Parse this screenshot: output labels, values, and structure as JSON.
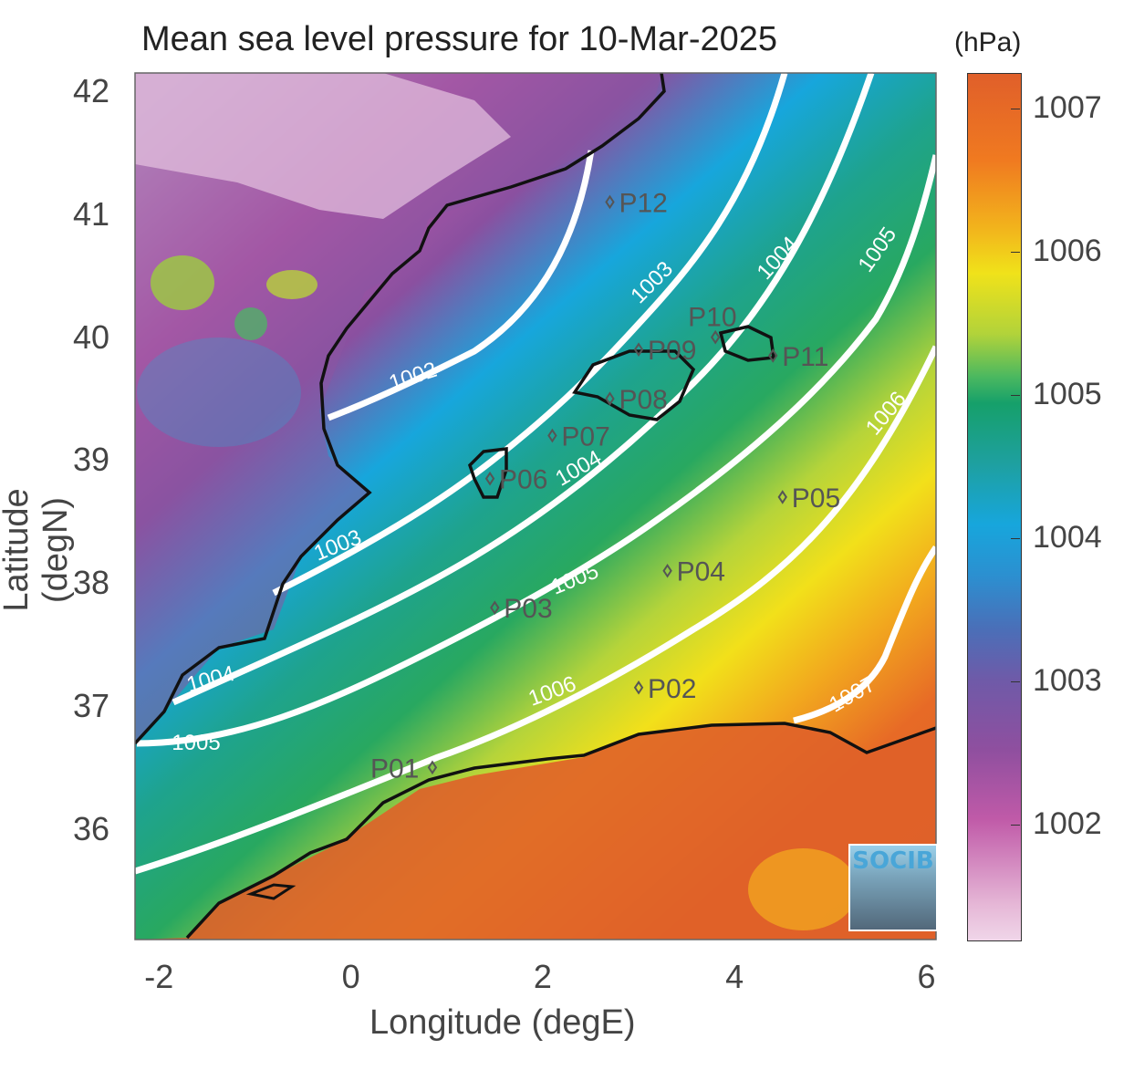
{
  "title": "Mean sea level pressure for 10-Mar-2025",
  "colorbar": {
    "unit_label": "(hPa)",
    "ticks": [
      "1007",
      "1006",
      "1005",
      "1004",
      "1003",
      "1002"
    ],
    "range": [
      1001.2,
      1007.25
    ]
  },
  "axes": {
    "xlabel": "Longitude (degE)",
    "ylabel": "Latitude (degN)",
    "xticks": [
      "-2",
      "0",
      "2",
      "4",
      "6"
    ],
    "yticks": [
      "42",
      "41",
      "40",
      "39",
      "38",
      "37",
      "36"
    ],
    "xlim": [
      -2.25,
      6.1
    ],
    "ylim": [
      35.1,
      42.15
    ]
  },
  "contours": [
    {
      "value": 1002,
      "label": "1002"
    },
    {
      "value": 1003,
      "label": "1003"
    },
    {
      "value": 1004,
      "label": "1004"
    },
    {
      "value": 1005,
      "label": "1005"
    },
    {
      "value": 1006,
      "label": "1006"
    },
    {
      "value": 1007,
      "label": "1007"
    }
  ],
  "points": [
    {
      "label": "P01",
      "lon": 0.85,
      "lat": 36.5
    },
    {
      "label": "P02",
      "lon": 3.0,
      "lat": 37.15
    },
    {
      "label": "P03",
      "lon": 1.5,
      "lat": 37.8
    },
    {
      "label": "P04",
      "lon": 3.3,
      "lat": 38.1
    },
    {
      "label": "P05",
      "lon": 4.5,
      "lat": 38.7
    },
    {
      "label": "P06",
      "lon": 1.45,
      "lat": 38.85
    },
    {
      "label": "P07",
      "lon": 2.1,
      "lat": 39.2
    },
    {
      "label": "P08",
      "lon": 2.7,
      "lat": 39.5
    },
    {
      "label": "P09",
      "lon": 3.0,
      "lat": 39.9
    },
    {
      "label": "P10",
      "lon": 3.8,
      "lat": 40.0
    },
    {
      "label": "P11",
      "lon": 4.4,
      "lat": 39.85
    },
    {
      "label": "P12",
      "lon": 2.7,
      "lat": 41.1
    }
  ],
  "logo": "SOCIB",
  "colors": {
    "coastline": "#111111",
    "contour": "#ffffff",
    "point_label": "#555555"
  }
}
